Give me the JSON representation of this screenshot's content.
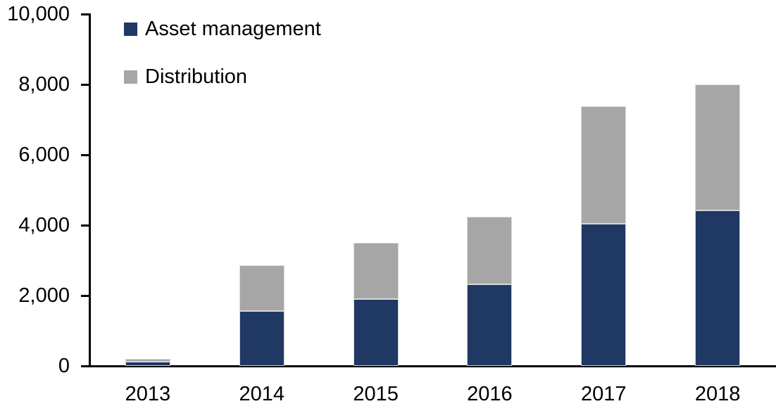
{
  "chart_data": {
    "type": "bar",
    "stacked": true,
    "title": "",
    "xlabel": "",
    "ylabel": "",
    "categories": [
      "2013",
      "2014",
      "2015",
      "2016",
      "2017",
      "2018"
    ],
    "series": [
      {
        "name": "Asset management",
        "color": "#1F3864",
        "values": [
          130,
          1560,
          1900,
          2320,
          4040,
          4420
        ]
      },
      {
        "name": "Distribution",
        "color": "#A6A6A6",
        "values": [
          80,
          1310,
          1600,
          1930,
          3350,
          3580
        ]
      }
    ],
    "totals": [
      210,
      2870,
      3500,
      4250,
      7390,
      8000
    ],
    "ylim": [
      0,
      10000
    ],
    "ytick_interval": 2000,
    "ytick_labels": [
      "0",
      "2,000",
      "4,000",
      "6,000",
      "8,000",
      "10,000"
    ],
    "grid": false,
    "legend_position": "top-left-inside",
    "axis_color": "#000000",
    "background_color": "#FFFFFF"
  }
}
